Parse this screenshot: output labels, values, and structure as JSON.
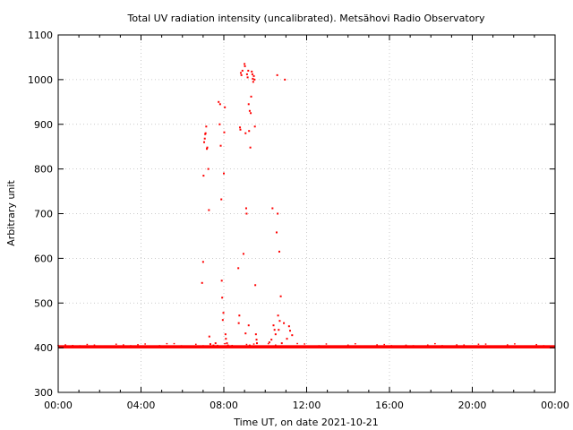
{
  "chart_data": {
    "type": "scatter",
    "title": "Total UV radiation intensity (uncalibrated). Metsähovi Radio Observatory",
    "xlabel": "Time UT, on date 2021-10-21",
    "ylabel": "Arbitrary unit",
    "x_range_hours": [
      0,
      24
    ],
    "ylim": [
      300,
      1100
    ],
    "x_ticks": [
      {
        "hour": 0,
        "label": "00:00"
      },
      {
        "hour": 4,
        "label": "04:00"
      },
      {
        "hour": 8,
        "label": "08:00"
      },
      {
        "hour": 12,
        "label": "12:00"
      },
      {
        "hour": 16,
        "label": "16:00"
      },
      {
        "hour": 20,
        "label": "20:00"
      },
      {
        "hour": 24,
        "label": "00:00"
      }
    ],
    "y_ticks": [
      300,
      400,
      500,
      600,
      700,
      800,
      900,
      1000,
      1100
    ],
    "grid": true,
    "marker_color": "#ff0000",
    "baseline": {
      "value": 402,
      "x_start_hour": 0,
      "x_end_hour": 24,
      "note_visible": false
    },
    "series": [
      {
        "points": [
          [
            6.95,
            545
          ],
          [
            7.0,
            592
          ],
          [
            7.02,
            785
          ],
          [
            7.05,
            860
          ],
          [
            7.08,
            868
          ],
          [
            7.1,
            878
          ],
          [
            7.12,
            880
          ],
          [
            7.15,
            895
          ],
          [
            7.18,
            845
          ],
          [
            7.2,
            848
          ],
          [
            7.25,
            800
          ],
          [
            7.28,
            708
          ],
          [
            7.3,
            425
          ],
          [
            7.35,
            408
          ],
          [
            7.5,
            405
          ],
          [
            7.6,
            410
          ],
          [
            7.75,
            950
          ],
          [
            7.8,
            900
          ],
          [
            7.82,
            945
          ],
          [
            7.85,
            852
          ],
          [
            7.88,
            732
          ],
          [
            7.9,
            550
          ],
          [
            7.92,
            512
          ],
          [
            7.95,
            462
          ],
          [
            7.98,
            478
          ],
          [
            8.0,
            790
          ],
          [
            8.02,
            882
          ],
          [
            8.05,
            938
          ],
          [
            8.08,
            430
          ],
          [
            8.1,
            420
          ],
          [
            8.15,
            410
          ],
          [
            8.2,
            405
          ],
          [
            8.7,
            578
          ],
          [
            8.72,
            455
          ],
          [
            8.75,
            472
          ],
          [
            8.78,
            893
          ],
          [
            8.8,
            888
          ],
          [
            8.82,
            1015
          ],
          [
            8.85,
            1010
          ],
          [
            8.9,
            1020
          ],
          [
            8.95,
            610
          ],
          [
            9.0,
            1035
          ],
          [
            9.02,
            1030
          ],
          [
            9.05,
            880
          ],
          [
            9.08,
            712
          ],
          [
            9.1,
            700
          ],
          [
            9.12,
            1012
          ],
          [
            9.15,
            1005
          ],
          [
            9.18,
            1020
          ],
          [
            9.2,
            945
          ],
          [
            9.22,
            885
          ],
          [
            9.25,
            930
          ],
          [
            9.28,
            848
          ],
          [
            9.3,
            925
          ],
          [
            9.32,
            962
          ],
          [
            9.35,
            1018
          ],
          [
            9.38,
            1012
          ],
          [
            9.4,
            1002
          ],
          [
            9.42,
            995
          ],
          [
            9.45,
            1008
          ],
          [
            9.48,
            1000
          ],
          [
            9.5,
            895
          ],
          [
            9.52,
            540
          ],
          [
            9.55,
            430
          ],
          [
            9.58,
            418
          ],
          [
            9.6,
            410
          ],
          [
            9.05,
            432
          ],
          [
            9.2,
            450
          ],
          [
            9.25,
            405
          ],
          [
            10.2,
            412
          ],
          [
            10.3,
            418
          ],
          [
            10.35,
            712
          ],
          [
            10.4,
            450
          ],
          [
            10.45,
            440
          ],
          [
            10.5,
            430
          ],
          [
            10.55,
            658
          ],
          [
            10.58,
            1010
          ],
          [
            10.6,
            700
          ],
          [
            10.62,
            472
          ],
          [
            10.65,
            440
          ],
          [
            10.68,
            615
          ],
          [
            10.7,
            460
          ],
          [
            10.75,
            515
          ],
          [
            10.8,
            410
          ],
          [
            10.9,
            455
          ],
          [
            10.95,
            1000
          ],
          [
            11.05,
            420
          ],
          [
            11.15,
            448
          ],
          [
            11.2,
            438
          ],
          [
            11.3,
            428
          ]
        ]
      }
    ]
  }
}
